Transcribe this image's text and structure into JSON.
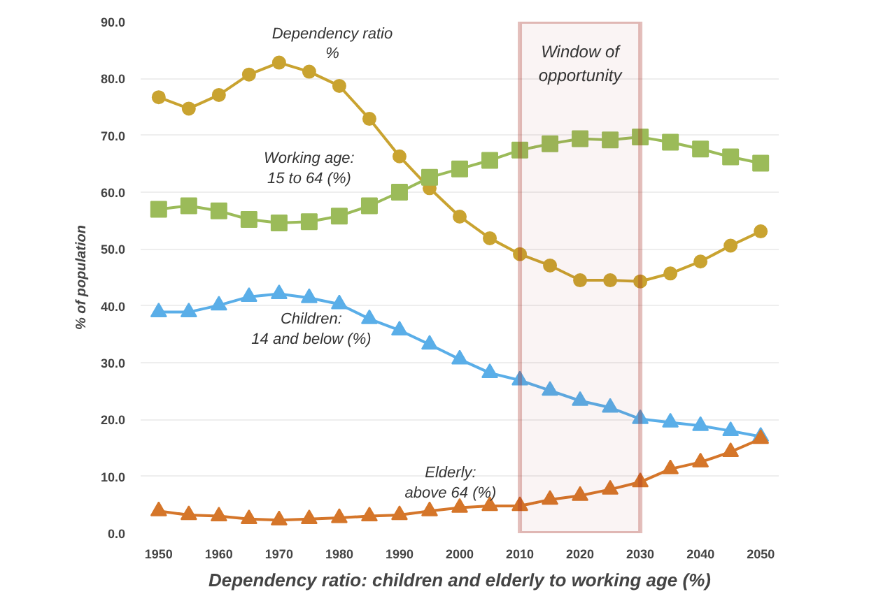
{
  "chart_data": {
    "type": "line",
    "xlabel": "Dependency ratio: children and elderly to working age (%)",
    "ylabel": "% of population",
    "x": [
      1950,
      1955,
      1960,
      1965,
      1970,
      1975,
      1980,
      1985,
      1990,
      1995,
      2000,
      2005,
      2010,
      2015,
      2020,
      2025,
      2030,
      2035,
      2040,
      2045,
      2050
    ],
    "series": [
      {
        "name": "Dependency ratio\n%",
        "color": "#c9a330",
        "marker": "circle",
        "values": [
          76.7,
          74.7,
          77.1,
          80.7,
          82.8,
          81.2,
          78.7,
          72.9,
          66.3,
          60.7,
          55.7,
          51.9,
          49.1,
          47.1,
          44.5,
          44.5,
          44.3,
          45.7,
          47.8,
          50.6,
          53.1
        ]
      },
      {
        "name": "Working age:\n15 to 64 (%)",
        "color": "#9bbb59",
        "marker": "square",
        "values": [
          57.0,
          57.6,
          56.7,
          55.2,
          54.6,
          54.8,
          55.8,
          57.6,
          60.0,
          62.6,
          64.1,
          65.6,
          67.4,
          68.5,
          69.4,
          69.2,
          69.7,
          68.8,
          67.6,
          66.2,
          65.1
        ]
      },
      {
        "name": "Children:\n14 and below (%)",
        "color": "#5aaee8",
        "marker": "triangle",
        "values": [
          38.9,
          38.9,
          40.1,
          41.6,
          42.1,
          41.4,
          40.3,
          37.7,
          35.7,
          33.2,
          30.6,
          28.2,
          26.9,
          25.1,
          23.3,
          22.1,
          20.1,
          19.5,
          18.9,
          18.0,
          17.0
        ]
      },
      {
        "name": "Elderly:\nabove 64 (%)",
        "color": "#d5762a",
        "marker": "triangle",
        "values": [
          3.9,
          3.2,
          3.0,
          2.5,
          2.3,
          2.5,
          2.7,
          3.0,
          3.2,
          3.9,
          4.5,
          4.8,
          4.8,
          5.9,
          6.6,
          7.7,
          9.0,
          11.3,
          12.5,
          14.3,
          16.6
        ]
      }
    ],
    "bands": [
      {
        "axis": "x",
        "from": 2010,
        "to": 2030,
        "label": "Window of\nopportunity",
        "color": "#a52a22"
      }
    ],
    "xlim": [
      1947,
      2053
    ],
    "ylim": [
      0,
      90
    ],
    "xticks": [
      1950,
      1960,
      1970,
      1980,
      1990,
      2000,
      2010,
      2020,
      2030,
      2040,
      2050
    ],
    "yticks": [
      {
        "value": 0,
        "label": "0.0"
      },
      {
        "value": 10,
        "label": "10.0"
      },
      {
        "value": 20,
        "label": "20.0"
      },
      {
        "value": 30,
        "label": "30.0"
      },
      {
        "value": 40,
        "label": "40.0"
      },
      {
        "value": 50,
        "label": "50.0"
      },
      {
        "value": 60,
        "label": "60.0"
      },
      {
        "value": 70,
        "label": "70.0"
      },
      {
        "value": 80,
        "label": "80.0"
      },
      {
        "value": 90,
        "label": "90.0"
      }
    ],
    "grid": "y",
    "line_style": "solid"
  }
}
